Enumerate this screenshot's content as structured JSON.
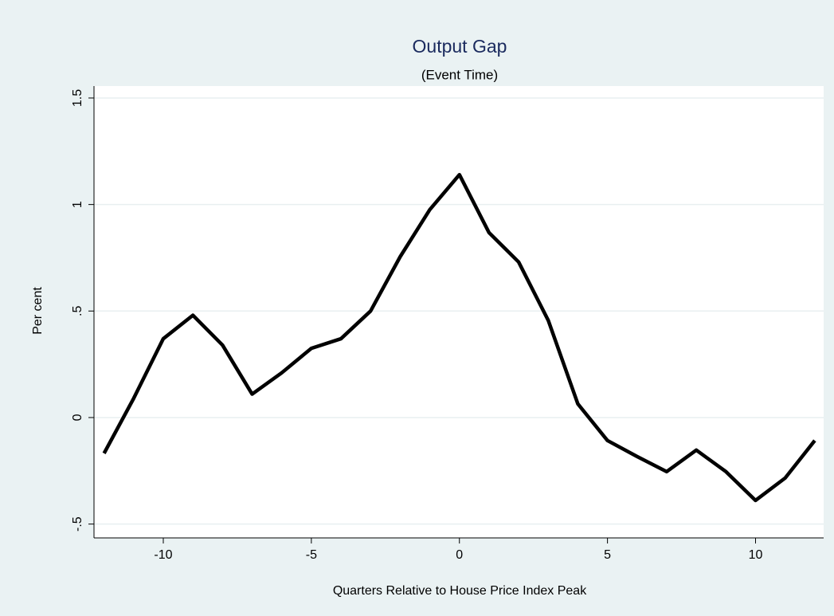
{
  "chart_data": {
    "type": "line",
    "title": "Output Gap",
    "subtitle": "(Event Time)",
    "x_label": "Quarters Relative to House Price Index Peak",
    "y_label": "Per cent",
    "x": [
      -12,
      -11,
      -10,
      -9,
      -8,
      -7,
      -6,
      -5,
      -4,
      -3,
      -2,
      -1,
      0,
      1,
      2,
      3,
      4,
      5,
      6,
      7,
      8,
      9,
      10,
      11,
      12
    ],
    "series": [
      {
        "name": "Output Gap",
        "color": "#000000",
        "values": [
          -0.168,
          0.09,
          0.37,
          0.48,
          0.34,
          0.11,
          0.21,
          0.325,
          0.37,
          0.5,
          0.755,
          0.976,
          1.14,
          0.868,
          0.73,
          0.456,
          0.064,
          -0.108,
          -0.183,
          -0.254,
          -0.153,
          -0.254,
          -0.389,
          -0.284,
          -0.108
        ]
      }
    ],
    "xlim": [
      -12.34,
      12.3
    ],
    "xticks": [
      -10,
      -5,
      0,
      5,
      10
    ],
    "ylim": [
      -0.565,
      1.556
    ],
    "yticks": [
      {
        "value": -0.5,
        "label": "-.5"
      },
      0,
      {
        "value": 0.5,
        "label": ".5"
      },
      1,
      1.5
    ],
    "grid": true
  }
}
